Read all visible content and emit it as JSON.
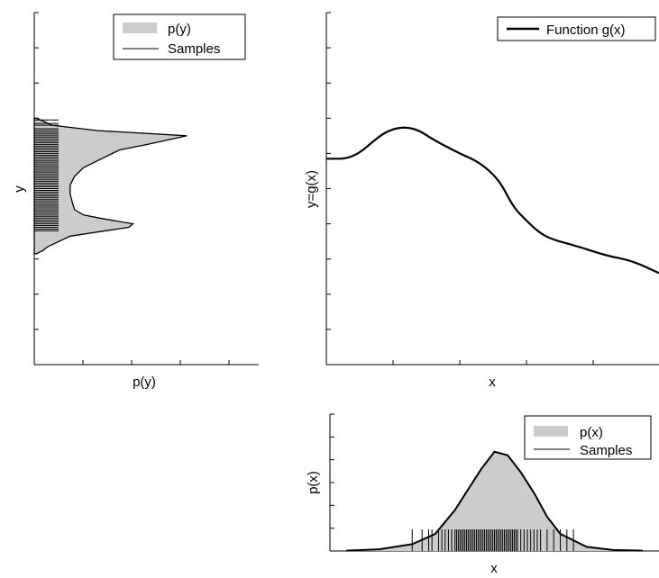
{
  "chart_data": [
    {
      "type": "area",
      "panel": "top-left",
      "orientation": "horizontal (density plotted along x-axis, variable y along vertical axis)",
      "xlabel": "p(y)",
      "ylabel": "y",
      "legend": {
        "placement": "top-right",
        "entries": [
          "p(y)",
          "Samples"
        ]
      },
      "series": [
        {
          "name": "p(y)",
          "y": [
            1.4,
            1.36,
            1.33,
            1.3,
            1.25,
            1.22,
            1.17,
            1.12,
            1.07,
            1.02,
            0.97,
            0.92,
            0.88,
            0.85,
            0.83,
            0.8,
            0.78,
            0.73,
            0.67,
            0.65,
            0.63
          ],
          "density": [
            0.05,
            0.4,
            1.4,
            3.4,
            2.5,
            1.9,
            1.5,
            1.1,
            0.9,
            0.8,
            0.8,
            0.85,
            0.9,
            1.1,
            1.5,
            2.2,
            2.1,
            0.8,
            0.3,
            0.2,
            0.05
          ]
        },
        {
          "name": "Samples",
          "y": [
            1.39,
            1.37,
            1.36,
            1.34,
            1.33,
            1.32,
            1.31,
            1.3,
            1.29,
            1.28,
            1.27,
            1.26,
            1.25,
            1.24,
            1.23,
            1.22,
            1.21,
            1.2,
            1.19,
            1.18,
            1.17,
            1.16,
            1.15,
            1.14,
            1.13,
            1.12,
            1.11,
            1.1,
            1.09,
            1.08,
            1.07,
            1.06,
            1.05,
            1.04,
            1.03,
            1.02,
            1.01,
            1.0,
            0.99,
            0.98,
            0.97,
            0.96,
            0.95,
            0.94,
            0.93,
            0.92,
            0.91,
            0.9,
            0.89,
            0.88,
            0.87,
            0.86,
            0.85,
            0.84,
            0.83,
            0.82,
            0.81,
            0.8,
            0.79,
            0.78,
            0.77,
            0.76
          ]
        }
      ],
      "ylim": [
        0,
        2
      ],
      "xlim": [
        0,
        5
      ]
    },
    {
      "type": "line",
      "panel": "top-right",
      "xlabel": "x",
      "ylabel": "y=g(x)",
      "legend": {
        "placement": "top-right",
        "entries": [
          "Function g(x)"
        ]
      },
      "series": [
        {
          "name": "Function g(x)",
          "x": [
            0.0,
            0.08,
            0.16,
            0.2,
            0.24,
            0.28,
            0.32,
            0.4,
            0.46,
            0.52,
            0.56,
            0.6,
            0.64,
            0.68,
            0.76,
            0.84,
            0.92,
            1.0
          ],
          "y": [
            1.17,
            1.17,
            1.3,
            1.34,
            1.35,
            1.33,
            1.28,
            1.2,
            1.15,
            1.05,
            0.9,
            0.82,
            0.75,
            0.71,
            0.67,
            0.62,
            0.59,
            0.52
          ]
        }
      ],
      "xlim": [
        0,
        1
      ],
      "ylim": [
        0,
        2
      ]
    },
    {
      "type": "area",
      "panel": "bottom-right",
      "xlabel": "x",
      "ylabel": "p(x)",
      "legend": {
        "placement": "top-right",
        "entries": [
          "p(x)",
          "Samples"
        ]
      },
      "series": [
        {
          "name": "p(x)",
          "x": [
            0.05,
            0.15,
            0.25,
            0.32,
            0.38,
            0.42,
            0.46,
            0.5,
            0.54,
            0.58,
            0.62,
            0.66,
            0.7,
            0.78,
            0.86,
            0.95
          ],
          "density": [
            0.01,
            0.05,
            0.2,
            0.5,
            1.2,
            1.8,
            2.4,
            2.9,
            2.8,
            2.3,
            1.7,
            1.0,
            0.5,
            0.12,
            0.03,
            0.01
          ]
        },
        {
          "name": "Samples",
          "x": [
            0.25,
            0.28,
            0.3,
            0.31,
            0.33,
            0.34,
            0.35,
            0.36,
            0.37,
            0.38,
            0.385,
            0.39,
            0.395,
            0.4,
            0.405,
            0.41,
            0.415,
            0.42,
            0.425,
            0.43,
            0.435,
            0.44,
            0.445,
            0.45,
            0.455,
            0.46,
            0.465,
            0.47,
            0.475,
            0.48,
            0.485,
            0.49,
            0.495,
            0.5,
            0.505,
            0.51,
            0.515,
            0.52,
            0.525,
            0.53,
            0.535,
            0.54,
            0.545,
            0.55,
            0.555,
            0.56,
            0.565,
            0.57,
            0.58,
            0.59,
            0.6,
            0.61,
            0.62,
            0.63,
            0.64,
            0.66,
            0.68,
            0.7,
            0.72,
            0.74
          ]
        }
      ],
      "xlim": [
        0,
        1
      ],
      "ylim": [
        0,
        4
      ]
    }
  ],
  "colors": {
    "fill": "#cccccc",
    "line": "#000000",
    "axis": "#000000"
  }
}
